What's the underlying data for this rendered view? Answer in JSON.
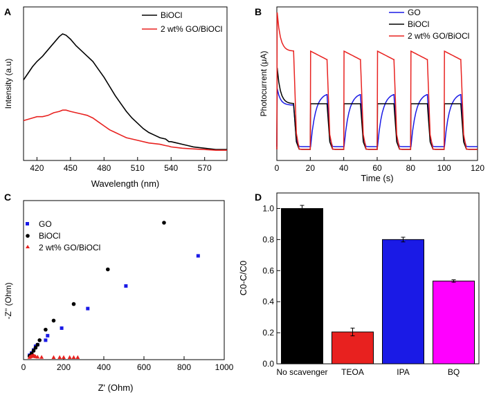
{
  "colors": {
    "black": "#000000",
    "red": "#e8211f",
    "blue": "#1a1ae6",
    "magenta": "#ff00ff",
    "errbar": "#000000"
  },
  "chart_data": [
    {
      "panel": "A",
      "type": "line",
      "xlabel": "Wavelength (nm)",
      "ylabel": "Intensity (a.u)",
      "xlim": [
        408,
        590
      ],
      "ylim": [
        0,
        1
      ],
      "xticks": [
        420,
        450,
        480,
        510,
        540,
        570
      ],
      "legend": [
        "BiOCl",
        "2 wt% GO/BiOCl"
      ],
      "series": [
        {
          "name": "BiOCl",
          "color": "black",
          "x": [
            408,
            412,
            416,
            420,
            425,
            430,
            435,
            440,
            443,
            446,
            450,
            455,
            460,
            465,
            470,
            475,
            480,
            485,
            490,
            495,
            500,
            505,
            510,
            515,
            520,
            525,
            530,
            535,
            538,
            540,
            545,
            550,
            555,
            560,
            570,
            580,
            590
          ],
          "y": [
            0.55,
            0.6,
            0.65,
            0.69,
            0.73,
            0.78,
            0.83,
            0.88,
            0.9,
            0.89,
            0.86,
            0.81,
            0.77,
            0.73,
            0.69,
            0.63,
            0.57,
            0.5,
            0.43,
            0.37,
            0.31,
            0.26,
            0.22,
            0.18,
            0.15,
            0.13,
            0.11,
            0.1,
            0.08,
            0.08,
            0.07,
            0.06,
            0.05,
            0.04,
            0.03,
            0.02,
            0.02
          ]
        },
        {
          "name": "2 wt% GO/BiOCl",
          "color": "red",
          "x": [
            408,
            412,
            416,
            420,
            425,
            430,
            435,
            440,
            443,
            446,
            450,
            455,
            460,
            465,
            470,
            475,
            480,
            485,
            490,
            495,
            500,
            505,
            510,
            520,
            530,
            535,
            538,
            540,
            545,
            550,
            560,
            570,
            580,
            590
          ],
          "y": [
            0.24,
            0.25,
            0.26,
            0.27,
            0.27,
            0.28,
            0.3,
            0.31,
            0.32,
            0.32,
            0.31,
            0.3,
            0.29,
            0.28,
            0.26,
            0.23,
            0.2,
            0.17,
            0.15,
            0.13,
            0.11,
            0.1,
            0.09,
            0.07,
            0.06,
            0.05,
            0.045,
            0.04,
            0.035,
            0.03,
            0.025,
            0.02,
            0.015,
            0.015
          ]
        }
      ]
    },
    {
      "panel": "B",
      "type": "line",
      "xlabel": "Time (s)",
      "ylabel": "Photocurrent (μA)",
      "xlim": [
        0,
        120
      ],
      "ylim": [
        0,
        1
      ],
      "xticks": [
        0,
        20,
        40,
        60,
        80,
        100,
        120
      ],
      "legend": [
        "GO",
        "BiOCl",
        "2 wt% GO/BiOCl"
      ],
      "light_cycles": {
        "on": [
          0,
          20,
          40,
          60,
          80,
          100
        ],
        "off": [
          10,
          30,
          50,
          70,
          90,
          110
        ]
      },
      "series": [
        {
          "name": "GO",
          "color": "blue",
          "baseline": 0.03,
          "first_peak": 0.45,
          "plateau_start": 0.33,
          "plateau_end": 0.42
        },
        {
          "name": "BiOCl",
          "color": "black",
          "baseline": 0.01,
          "first_peak": 0.6,
          "plateau_start": 0.34,
          "plateau_end": 0.34
        },
        {
          "name": "2 wt% GO/BiOCl",
          "color": "red",
          "baseline": 0.01,
          "first_peak": 1.0,
          "plateau_start": 0.72,
          "plateau_end": 0.66
        }
      ]
    },
    {
      "panel": "C",
      "type": "scatter",
      "xlabel": "Z' (Ohm)",
      "ylabel": "-Z'' (Ohm)",
      "xlim": [
        0,
        1000
      ],
      "ylim": [
        0,
        900
      ],
      "xticks": [
        0,
        200,
        400,
        600,
        800,
        1000
      ],
      "legend": [
        "GO",
        "BiOCl",
        "2 wt% GO/BiOCl"
      ],
      "series": [
        {
          "name": "GO",
          "color": "blue",
          "marker": "square",
          "x": [
            30,
            40,
            50,
            60,
            70,
            110,
            120,
            190,
            320,
            510,
            870
          ],
          "y": [
            20,
            35,
            55,
            80,
            90,
            120,
            150,
            200,
            330,
            480,
            680
          ]
        },
        {
          "name": "BiOCl",
          "color": "black",
          "marker": "circle",
          "x": [
            30,
            40,
            50,
            60,
            70,
            80,
            110,
            150,
            250,
            420,
            700
          ],
          "y": [
            15,
            30,
            50,
            70,
            90,
            120,
            190,
            250,
            360,
            590,
            900
          ]
        },
        {
          "name": "2 wt% GO/BiOCl",
          "color": "red",
          "marker": "triangle",
          "x": [
            30,
            35,
            40,
            45,
            50,
            55,
            60,
            70,
            90,
            150,
            180,
            200,
            230,
            250,
            270
          ],
          "y": [
            8,
            12,
            15,
            17,
            20,
            15,
            12,
            10,
            8,
            7,
            7,
            7,
            7,
            7,
            7
          ]
        }
      ]
    },
    {
      "panel": "D",
      "type": "bar",
      "ylabel": "C0-C/C0",
      "ylim": [
        0,
        1.1
      ],
      "yticks": [
        "0.0",
        "0.2",
        "0.4",
        "0.6",
        "0.8",
        "1.0"
      ],
      "categories": [
        "No scavenger",
        "TEOA",
        "IPA",
        "BQ"
      ],
      "values": [
        1.0,
        0.205,
        0.8,
        0.533
      ],
      "errors": [
        0.02,
        0.025,
        0.015,
        0.008
      ],
      "bar_colors": [
        "black",
        "red",
        "blue",
        "magenta"
      ]
    }
  ]
}
